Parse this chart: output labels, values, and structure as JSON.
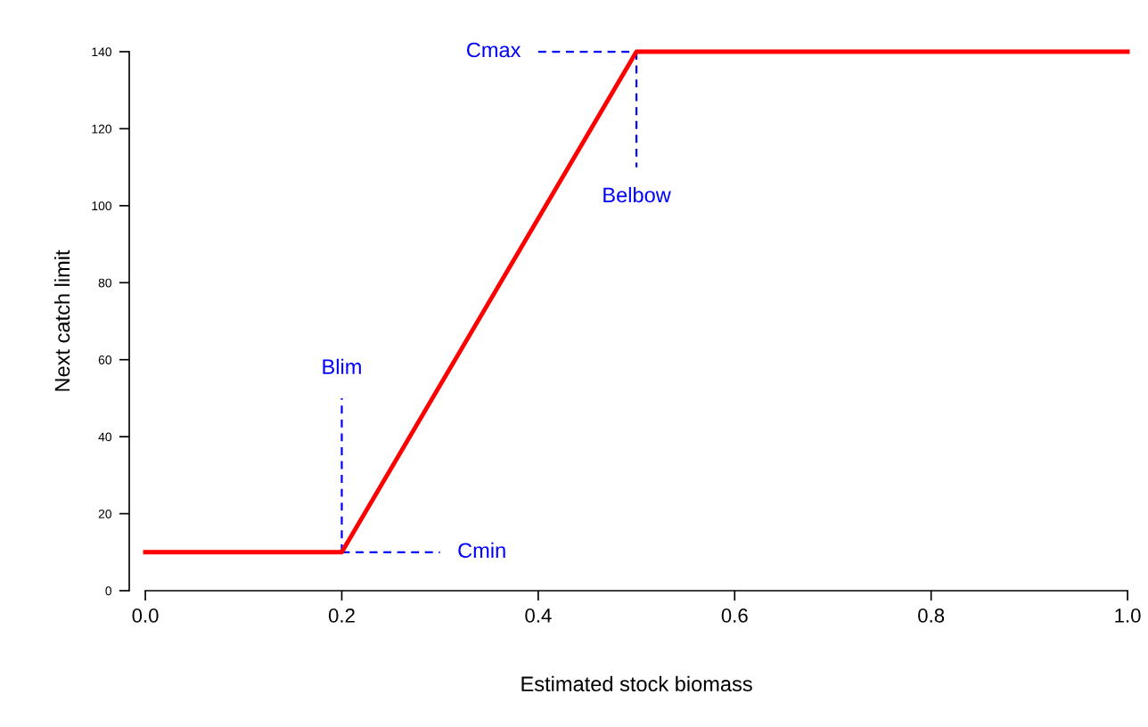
{
  "chart_data": {
    "type": "line",
    "xlabel": "Estimated stock biomass",
    "ylabel": "Next catch limit",
    "xlim": [
      0,
      1
    ],
    "ylim": [
      0,
      140
    ],
    "xticks": [
      {
        "value": 0,
        "label": "0.0"
      },
      0.2,
      0.4,
      0.6,
      0.8,
      {
        "value": 1,
        "label": "1.0"
      }
    ],
    "yticks": [
      0,
      20,
      40,
      60,
      80,
      100,
      120,
      140
    ],
    "grid": false,
    "marker": "none",
    "series": [
      {
        "color": "#ff0000",
        "x": [
          0,
          0.2,
          0.5,
          1
        ],
        "values": [
          10,
          10,
          140,
          140
        ],
        "line_style": "solid"
      },
      {
        "color": "#0000ff",
        "x": [
          0.2,
          0.2
        ],
        "values": [
          10,
          50
        ],
        "line_style": "dashed"
      },
      {
        "color": "#0000ff",
        "x": [
          0.2,
          0.3
        ],
        "values": [
          10,
          10
        ],
        "line_style": "dashed"
      },
      {
        "color": "#0000ff",
        "x": [
          0.4,
          0.5
        ],
        "values": [
          140,
          140
        ],
        "line_style": "dashed"
      },
      {
        "color": "#0000ff",
        "x": [
          0.5,
          0.5
        ],
        "values": [
          140,
          110
        ],
        "line_style": "dashed"
      }
    ],
    "annotations": [
      "Blim",
      "Cmin",
      "Cmax",
      "Belbow"
    ]
  }
}
